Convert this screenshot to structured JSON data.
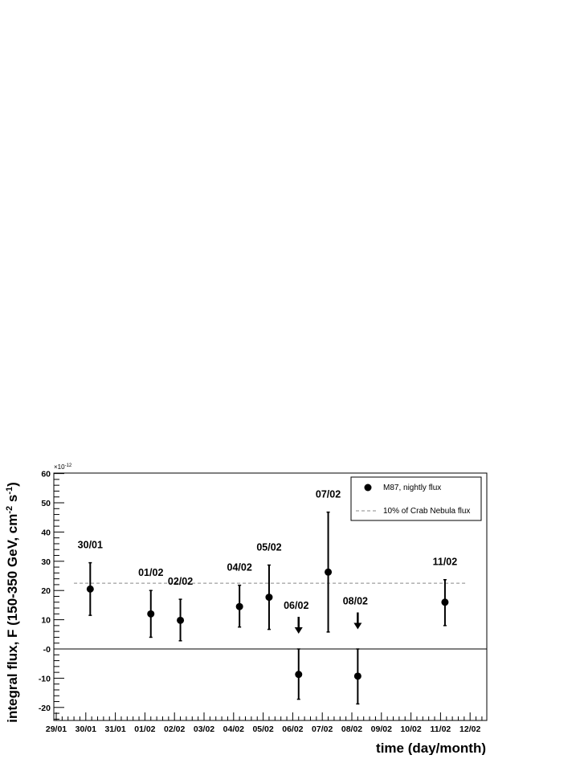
{
  "chart_data": {
    "type": "scatter",
    "xlabel": "time (day/month)",
    "ylabel": "integral flux, F (150-350 GeV, cm^2 s^-1)",
    "ylabel_parts": {
      "main": "integral flux, F (150-350 GeV, cm",
      "sup1": "-2",
      "mid": " s",
      "sup2": "-1",
      "end": ")"
    },
    "y_multiplier": "×10",
    "y_multiplier_exp": "-12",
    "x_tick_labels": [
      "29/01",
      "30/01",
      "31/01",
      "01/02",
      "02/02",
      "03/02",
      "04/02",
      "05/02",
      "06/02",
      "07/02",
      "08/02",
      "09/02",
      "10/02",
      "11/02",
      "12/02"
    ],
    "y_tick_labels": [
      "-20",
      "-10",
      "-0",
      "10",
      "20",
      "30",
      "40",
      "50",
      "60"
    ],
    "ylim": [
      -25,
      60
    ],
    "xlim": [
      0,
      14.5
    ],
    "grid": false,
    "legend_position": "top-right",
    "legend": [
      {
        "label": "M87, nightly flux",
        "marker": "filled-circle"
      },
      {
        "label": "10% of Crab Nebula flux",
        "marker": "dashed-line"
      }
    ],
    "reference_line": {
      "name": "10% of Crab Nebula flux",
      "value": 22.5,
      "color": "#888888"
    },
    "zero_line": 0,
    "series": [
      {
        "name": "M87, nightly flux",
        "points": [
          {
            "x": 1.15,
            "y": 20.5,
            "err_low": 9.0,
            "err_high": 9.0,
            "label": "30/01"
          },
          {
            "x": 3.2,
            "y": 12.0,
            "err_low": 8.0,
            "err_high": 8.0,
            "label": "01/02"
          },
          {
            "x": 4.2,
            "y": 9.8,
            "err_low": 7.0,
            "err_high": 7.2,
            "label": "02/02"
          },
          {
            "x": 6.2,
            "y": 14.5,
            "err_low": 7.0,
            "err_high": 7.3,
            "label": "04/02"
          },
          {
            "x": 7.2,
            "y": 17.7,
            "err_low": 11.0,
            "err_high": 11.0,
            "label": "05/02"
          },
          {
            "x": 8.2,
            "y": -8.7,
            "err_low": 8.5,
            "err_high": 8.7,
            "label": ""
          },
          {
            "x": 9.2,
            "y": 26.3,
            "err_low": 20.5,
            "err_high": 20.5,
            "label": "07/02"
          },
          {
            "x": 10.2,
            "y": -9.3,
            "err_low": 9.5,
            "err_high": 9.3,
            "label": ""
          },
          {
            "x": 13.15,
            "y": 16.0,
            "err_low": 8.0,
            "err_high": 7.7,
            "label": "11/02"
          }
        ]
      }
    ],
    "upper_limits": [
      {
        "x": 8.2,
        "y": 11.0,
        "label": "06/02"
      },
      {
        "x": 10.2,
        "y": 12.5,
        "label": "08/02"
      }
    ]
  }
}
